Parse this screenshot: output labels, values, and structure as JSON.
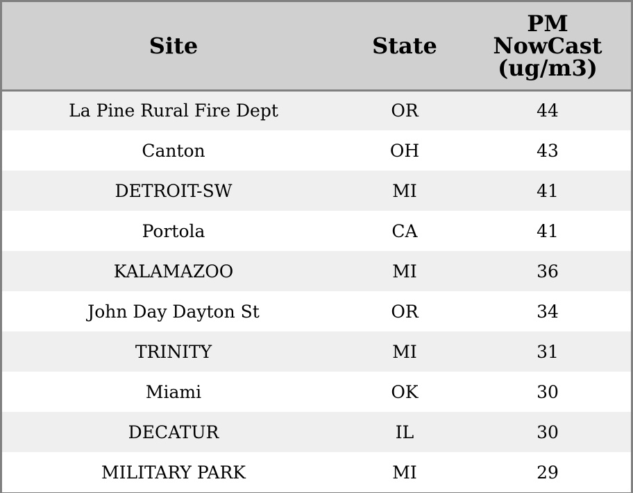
{
  "chart_data": {
    "type": "table",
    "columns": [
      "Site",
      "State",
      "PM NowCast (ug/m3)"
    ],
    "header_lines": {
      "site": [
        "Site"
      ],
      "state": [
        "State"
      ],
      "pm": [
        "PM",
        "NowCast",
        "(ug/m3)"
      ]
    },
    "rows": [
      {
        "site": "La Pine Rural Fire Dept",
        "state": "OR",
        "pm": 44
      },
      {
        "site": "Canton",
        "state": "OH",
        "pm": 43
      },
      {
        "site": "DETROIT-SW",
        "state": "MI",
        "pm": 41
      },
      {
        "site": "Portola",
        "state": "CA",
        "pm": 41
      },
      {
        "site": "KALAMAZOO",
        "state": "MI",
        "pm": 36
      },
      {
        "site": "John Day Dayton St",
        "state": "OR",
        "pm": 34
      },
      {
        "site": "TRINITY",
        "state": "MI",
        "pm": 31
      },
      {
        "site": "Miami",
        "state": "OK",
        "pm": 30
      },
      {
        "site": "DECATUR",
        "state": "IL",
        "pm": 30
      },
      {
        "site": "MILITARY PARK",
        "state": "MI",
        "pm": 29
      }
    ],
    "colors": {
      "header_bg": "#d0d0d0",
      "shaded_row_bg": "#efefef",
      "plain_row_bg": "#ffffff",
      "border": "#808080"
    }
  }
}
